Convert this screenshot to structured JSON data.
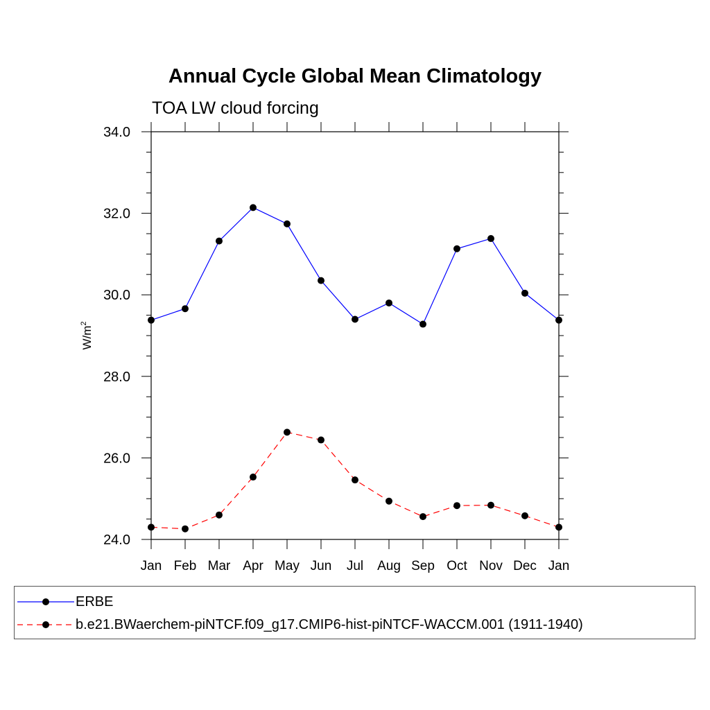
{
  "chart_data": {
    "type": "line",
    "title": "Annual Cycle Global Mean Climatology",
    "subtitle": "TOA LW cloud forcing",
    "ylabel": "W/m",
    "ylabel_sup": "2",
    "xlabel": "",
    "categories": [
      "Jan",
      "Feb",
      "Mar",
      "Apr",
      "May",
      "Jun",
      "Jul",
      "Aug",
      "Sep",
      "Oct",
      "Nov",
      "Dec",
      "Jan"
    ],
    "ylim": [
      24.0,
      34.0
    ],
    "yticks": [
      24.0,
      26.0,
      28.0,
      30.0,
      32.0,
      34.0
    ],
    "ytick_labels": [
      "24.0",
      "26.0",
      "28.0",
      "30.0",
      "32.0",
      "34.0"
    ],
    "grid": false,
    "legend_position": "bottom",
    "series": [
      {
        "name": "ERBE",
        "color": "#0000ff",
        "dash": "solid",
        "values": [
          29.38,
          29.66,
          31.32,
          32.14,
          31.74,
          30.35,
          29.4,
          29.8,
          29.28,
          31.13,
          31.38,
          30.04,
          29.38
        ]
      },
      {
        "name": "b.e21.BWaerchem-piNTCF.f09_g17.CMIP6-hist-piNTCF-WACCM.001 (1911-1940)",
        "color": "#ff0000",
        "dash": "dashed",
        "values": [
          24.3,
          24.26,
          24.6,
          25.53,
          26.63,
          26.44,
          25.46,
          24.94,
          24.56,
          24.83,
          24.84,
          24.58,
          24.3
        ]
      }
    ]
  }
}
